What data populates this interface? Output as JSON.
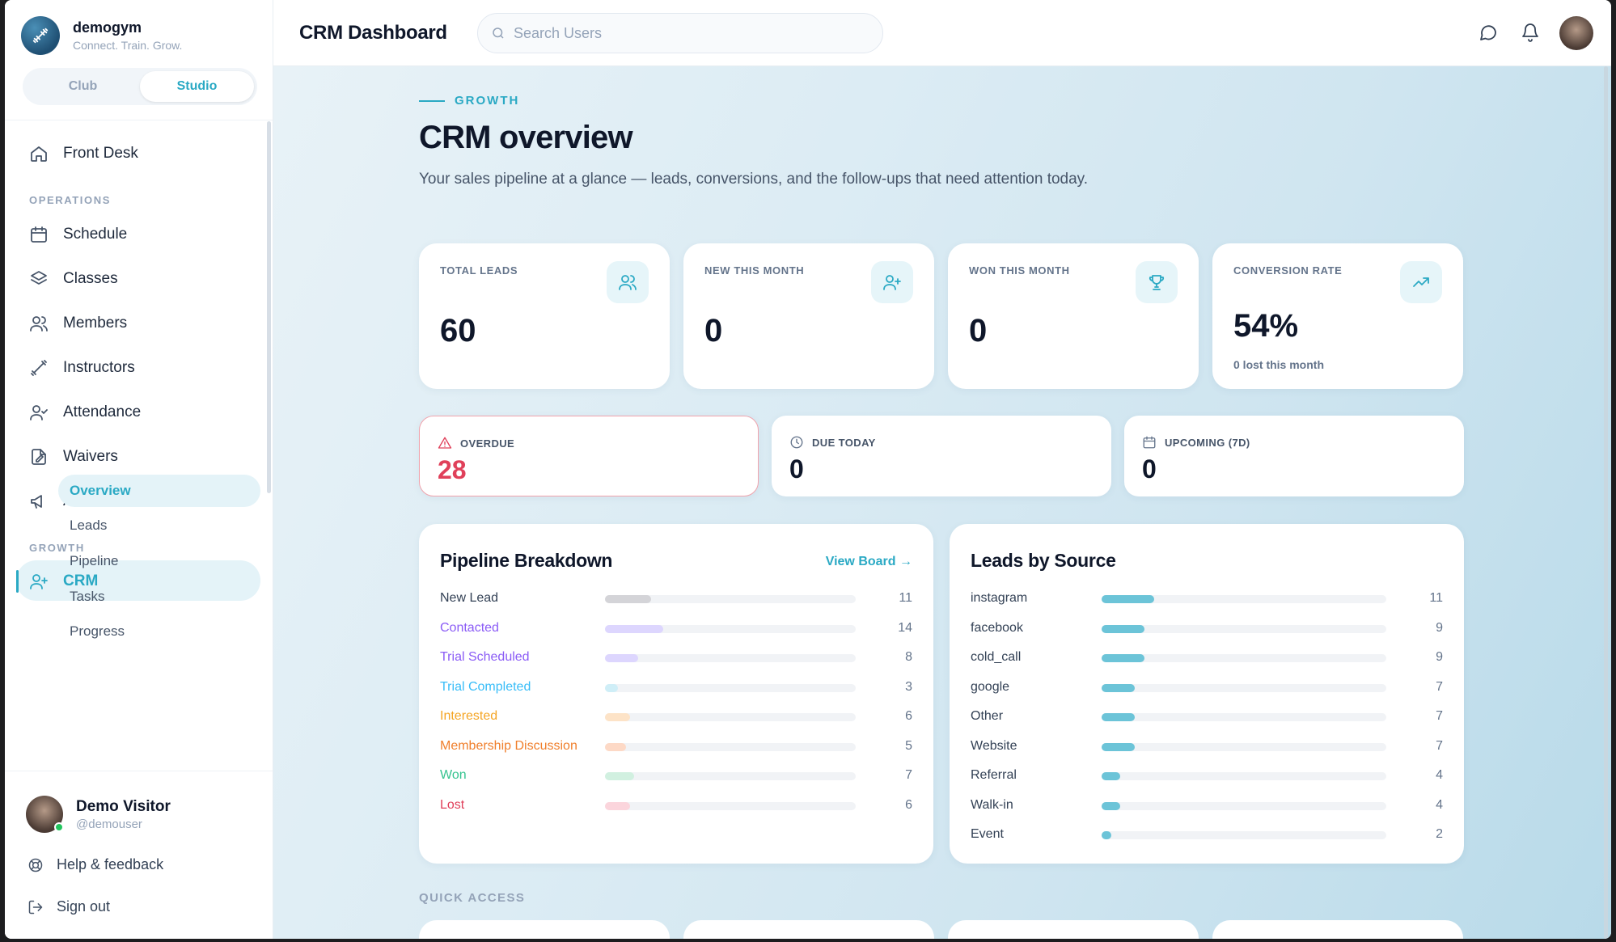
{
  "brand": {
    "name": "demogym",
    "tagline": "Connect. Train. Grow."
  },
  "switcher": {
    "options": [
      "Club",
      "Studio"
    ],
    "active": "Studio"
  },
  "nav": {
    "front_desk": "Front Desk",
    "sections": {
      "operations": "OPERATIONS",
      "growth": "GROWTH"
    },
    "operations": [
      "Schedule",
      "Classes",
      "Members",
      "Instructors",
      "Attendance",
      "Waivers",
      "Announcements"
    ],
    "crm": "CRM",
    "crm_sub": [
      "Overview",
      "Leads",
      "Pipeline",
      "Tasks",
      "Progress"
    ]
  },
  "user": {
    "name": "Demo Visitor",
    "handle": "@demouser"
  },
  "footer": {
    "help": "Help & feedback",
    "signout": "Sign out"
  },
  "header": {
    "title": "CRM Dashboard",
    "search_placeholder": "Search Users"
  },
  "hero": {
    "eyebrow": "GROWTH",
    "title": "CRM overview",
    "description": "Your sales pipeline at a glance — leads, conversions, and the follow-ups that need attention today."
  },
  "stats": [
    {
      "label": "TOTAL LEADS",
      "value": "60",
      "icon": "users-icon"
    },
    {
      "label": "NEW THIS MONTH",
      "value": "0",
      "icon": "user-plus-icon"
    },
    {
      "label": "WON THIS MONTH",
      "value": "0",
      "icon": "trophy-icon"
    },
    {
      "label": "CONVERSION RATE",
      "value": "54%",
      "sub": "0 lost this month",
      "icon": "trending-up-icon"
    }
  ],
  "followups": [
    {
      "label": "OVERDUE",
      "value": "28",
      "icon": "alert-triangle-icon"
    },
    {
      "label": "DUE TODAY",
      "value": "0",
      "icon": "clock-icon"
    },
    {
      "label": "UPCOMING (7D)",
      "value": "0",
      "icon": "calendar-icon"
    }
  ],
  "pipeline": {
    "title": "Pipeline Breakdown",
    "link": "View Board →",
    "max": 60,
    "rows": [
      {
        "label": "New Lead",
        "count": 11,
        "color": "#d4d4d8",
        "text_color": "#334155"
      },
      {
        "label": "Contacted",
        "count": 14,
        "color": "#ddd6fe",
        "text_color": "#8b5cf6"
      },
      {
        "label": "Trial Scheduled",
        "count": 8,
        "color": "#ddd6fe",
        "text_color": "#8b5cf6"
      },
      {
        "label": "Trial Completed",
        "count": 3,
        "color": "#cfeef7",
        "text_color": "#38bdf8"
      },
      {
        "label": "Interested",
        "count": 6,
        "color": "#fde3c7",
        "text_color": "#f5a524"
      },
      {
        "label": "Membership Discussion",
        "count": 5,
        "color": "#fdd9c6",
        "text_color": "#f07f2c"
      },
      {
        "label": "Won",
        "count": 7,
        "color": "#d1f0e0",
        "text_color": "#34c38f"
      },
      {
        "label": "Lost",
        "count": 6,
        "color": "#fbd5dc",
        "text_color": "#e0405a"
      }
    ]
  },
  "sources": {
    "title": "Leads by Source",
    "max": 60,
    "color": "#6cc4d8",
    "rows": [
      {
        "label": "instagram",
        "count": 11
      },
      {
        "label": "facebook",
        "count": 9
      },
      {
        "label": "cold_call",
        "count": 9
      },
      {
        "label": "google",
        "count": 7
      },
      {
        "label": "Other",
        "count": 7
      },
      {
        "label": "Website",
        "count": 7
      },
      {
        "label": "Referral",
        "count": 4
      },
      {
        "label": "Walk-in",
        "count": 4
      },
      {
        "label": "Event",
        "count": 2
      }
    ]
  },
  "quick_access": {
    "label": "QUICK ACCESS"
  }
}
